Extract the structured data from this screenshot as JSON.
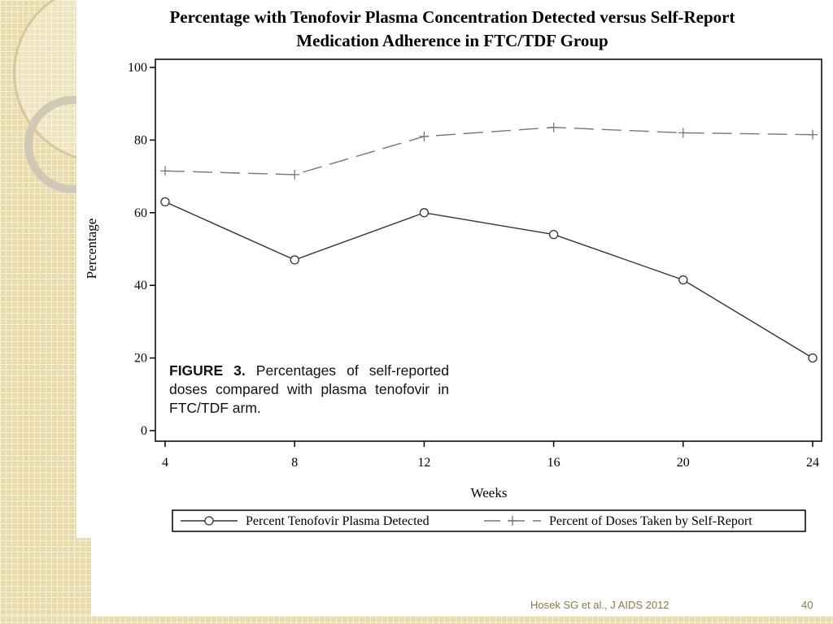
{
  "slide": {
    "caption_label": "FIGURE 3.",
    "caption_text": "Percentages of self-reported doses compared with plasma tenofovir in FTC/TDF arm.",
    "citation": "Hosek SG et al., J AIDS 2012",
    "page_number": "40"
  },
  "chart_data": {
    "type": "line",
    "title": [
      "Percentage with Tenofovir Plasma Concentration Detected versus Self-Report",
      "Medication Adherence in FTC/TDF Group"
    ],
    "xlabel": "Weeks",
    "ylabel": "Percentage",
    "x": [
      4,
      8,
      12,
      16,
      20,
      24
    ],
    "xticks": [
      4,
      8,
      12,
      16,
      20,
      24
    ],
    "yticks": [
      0,
      20,
      40,
      60,
      80,
      100
    ],
    "xlim": [
      4,
      24
    ],
    "ylim": [
      0,
      100
    ],
    "grid": false,
    "legend_position": "bottom",
    "series": [
      {
        "name": "Percent Tenofovir Plasma Detected",
        "values": [
          63,
          47,
          60,
          54,
          41.5,
          20
        ],
        "marker": "circle",
        "line": "solid",
        "color": "#333333"
      },
      {
        "name": "Percent of Doses Taken by Self-Report",
        "values": [
          71.5,
          70.5,
          81,
          83.5,
          82,
          81.5
        ],
        "marker": "plus",
        "line": "dashed",
        "color": "#777777"
      }
    ]
  }
}
